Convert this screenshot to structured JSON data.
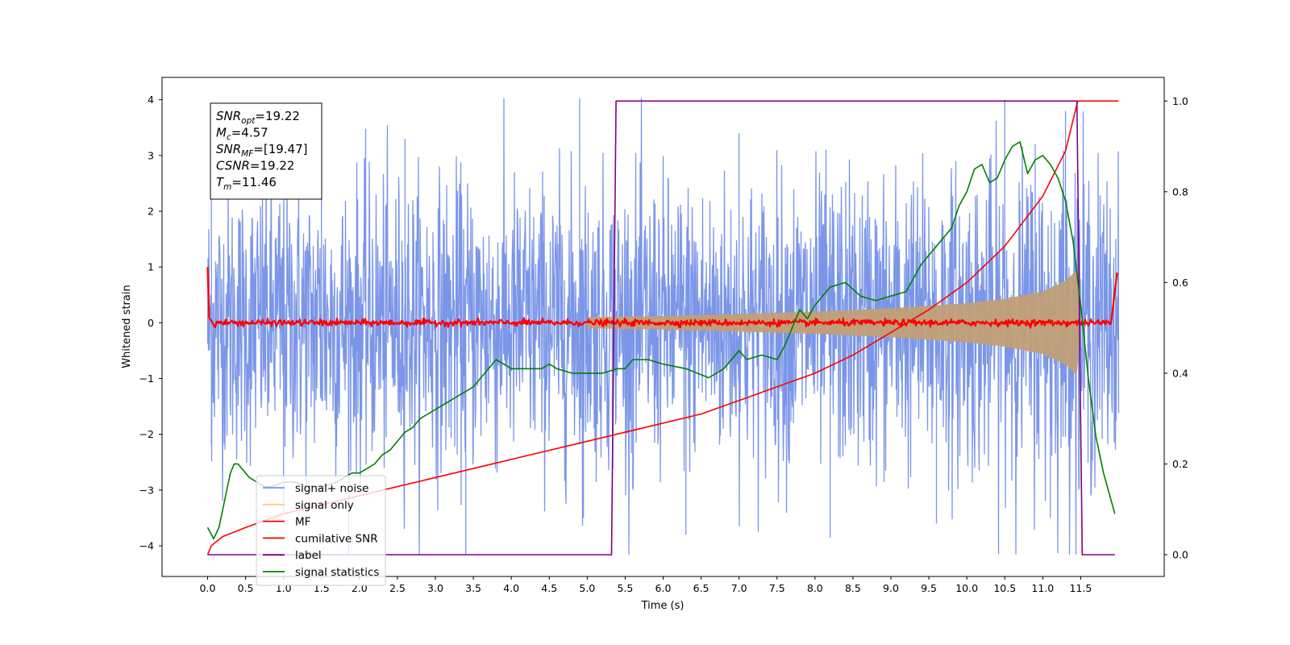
{
  "chart_data": {
    "type": "line",
    "xlabel": "Time (s)",
    "ylabel": "Whitened strain",
    "xlim": [
      -0.6,
      12.6
    ],
    "ylim": [
      -4.55,
      4.4
    ],
    "y2lim": [
      -0.048,
      1.052
    ],
    "x_ticks": [
      "0.0",
      "0.5",
      "1.0",
      "1.5",
      "2.0",
      "2.5",
      "3.0",
      "3.5",
      "4.0",
      "4.5",
      "5.0",
      "5.5",
      "6.0",
      "6.5",
      "7.0",
      "7.5",
      "8.0",
      "8.5",
      "9.0",
      "9.5",
      "10.0",
      "10.5",
      "11.0",
      "11.5"
    ],
    "y_ticks": [
      "4",
      "3",
      "2",
      "1",
      "0",
      "−1",
      "−2",
      "−3",
      "−4"
    ],
    "y2_ticks": [
      "1.0",
      "0.8",
      "0.6",
      "0.4",
      "0.2",
      "0.0"
    ],
    "info_box": [
      {
        "base": "SNR",
        "sub": "opt",
        "value": "=19.22"
      },
      {
        "base": "M",
        "sub": "c",
        "value": "=4.57"
      },
      {
        "base": "SNR",
        "sub": "MF",
        "value": "=[19.47]"
      },
      {
        "base": "CSNR",
        "sub": "",
        "value": "=19.22"
      },
      {
        "base": "T",
        "sub": "m",
        "value": "=11.46"
      }
    ],
    "legend": {
      "placement": "lower-left",
      "entries": [
        {
          "label": "signal+ noise",
          "color": "#7b96e8"
        },
        {
          "label": "signal only",
          "color": "#ffcc80"
        },
        {
          "label": "MF",
          "color": "#ff0000"
        },
        {
          "label": "cumilative SNR",
          "color": "#ff0000"
        },
        {
          "label": "label",
          "color": "#800080"
        },
        {
          "label": "signal statistics",
          "color": "#008000"
        }
      ]
    },
    "series": [
      {
        "name": "signal+ noise",
        "axis": "left",
        "color": "#7b96e8",
        "x_range": [
          0.0,
          12.0
        ],
        "upper_envelope": [
          [
            0.0,
            1.6
          ],
          [
            1.0,
            1.7
          ],
          [
            2.0,
            1.7
          ],
          [
            3.0,
            1.7
          ],
          [
            4.0,
            1.7
          ],
          [
            5.0,
            1.7
          ],
          [
            6.0,
            1.7
          ],
          [
            7.0,
            1.7
          ],
          [
            8.0,
            1.75
          ],
          [
            9.0,
            1.75
          ],
          [
            10.0,
            1.8
          ],
          [
            11.0,
            1.9
          ],
          [
            11.4,
            2.0
          ],
          [
            12.0,
            1.7
          ]
        ],
        "lower_envelope": [
          [
            0.0,
            -1.6
          ],
          [
            1.0,
            -1.7
          ],
          [
            2.0,
            -1.7
          ],
          [
            3.0,
            -1.7
          ],
          [
            4.0,
            -1.7
          ],
          [
            5.0,
            -1.7
          ],
          [
            6.0,
            -1.7
          ],
          [
            7.0,
            -1.7
          ],
          [
            8.0,
            -1.75
          ],
          [
            9.0,
            -1.75
          ],
          [
            10.0,
            -1.8
          ],
          [
            11.0,
            -1.9
          ],
          [
            11.4,
            -2.0
          ],
          [
            12.0,
            -1.7
          ]
        ],
        "peak_max": 4.02,
        "peak_min": -4.15
      },
      {
        "name": "signal only",
        "axis": "left",
        "color": "#c19f77",
        "envelope": [
          [
            5.0,
            0.1
          ],
          [
            6.0,
            0.12
          ],
          [
            7.0,
            0.16
          ],
          [
            8.0,
            0.2
          ],
          [
            9.0,
            0.26
          ],
          [
            10.0,
            0.35
          ],
          [
            10.5,
            0.43
          ],
          [
            11.0,
            0.56
          ],
          [
            11.3,
            0.75
          ],
          [
            11.45,
            0.95
          ],
          [
            11.5,
            0.0
          ]
        ]
      },
      {
        "name": "MF",
        "axis": "left",
        "color": "#ff0000",
        "points": [
          [
            0.0,
            1.0
          ],
          [
            0.02,
            0.1
          ],
          [
            0.1,
            0.0
          ],
          [
            11.9,
            0.0
          ],
          [
            11.98,
            0.9
          ]
        ]
      },
      {
        "name": "cumilative SNR",
        "axis": "right",
        "color": "#ff0000",
        "points": [
          [
            0.0,
            0.0
          ],
          [
            0.05,
            0.02
          ],
          [
            0.2,
            0.04
          ],
          [
            0.5,
            0.06
          ],
          [
            1.0,
            0.09
          ],
          [
            2.0,
            0.13
          ],
          [
            3.0,
            0.17
          ],
          [
            4.0,
            0.21
          ],
          [
            5.0,
            0.25
          ],
          [
            6.0,
            0.29
          ],
          [
            6.5,
            0.31
          ],
          [
            7.0,
            0.34
          ],
          [
            7.5,
            0.37
          ],
          [
            8.0,
            0.4
          ],
          [
            8.5,
            0.44
          ],
          [
            9.0,
            0.49
          ],
          [
            9.5,
            0.54
          ],
          [
            10.0,
            0.6
          ],
          [
            10.5,
            0.68
          ],
          [
            11.0,
            0.79
          ],
          [
            11.3,
            0.89
          ],
          [
            11.46,
            1.0
          ],
          [
            12.0,
            1.0
          ]
        ]
      },
      {
        "name": "label",
        "axis": "right",
        "color": "#800080",
        "points": [
          [
            0.0,
            0.0
          ],
          [
            5.32,
            0.0
          ],
          [
            5.38,
            1.0
          ],
          [
            11.45,
            1.0
          ],
          [
            11.52,
            0.0
          ],
          [
            11.95,
            0.0
          ]
        ]
      },
      {
        "name": "signal statistics",
        "axis": "right",
        "color": "#008000",
        "points": [
          [
            0.0,
            0.06
          ],
          [
            0.08,
            0.035
          ],
          [
            0.15,
            0.06
          ],
          [
            0.25,
            0.14
          ],
          [
            0.3,
            0.18
          ],
          [
            0.35,
            0.2
          ],
          [
            0.4,
            0.2
          ],
          [
            0.45,
            0.19
          ],
          [
            0.55,
            0.17
          ],
          [
            0.65,
            0.16
          ],
          [
            0.75,
            0.15
          ],
          [
            0.85,
            0.15
          ],
          [
            1.0,
            0.16
          ],
          [
            1.15,
            0.16
          ],
          [
            1.3,
            0.15
          ],
          [
            1.5,
            0.15
          ],
          [
            1.7,
            0.16
          ],
          [
            1.8,
            0.17
          ],
          [
            1.9,
            0.18
          ],
          [
            2.0,
            0.18
          ],
          [
            2.1,
            0.19
          ],
          [
            2.2,
            0.2
          ],
          [
            2.3,
            0.22
          ],
          [
            2.4,
            0.23
          ],
          [
            2.5,
            0.25
          ],
          [
            2.6,
            0.27
          ],
          [
            2.7,
            0.28
          ],
          [
            2.8,
            0.3
          ],
          [
            2.9,
            0.31
          ],
          [
            3.0,
            0.32
          ],
          [
            3.1,
            0.33
          ],
          [
            3.2,
            0.34
          ],
          [
            3.3,
            0.35
          ],
          [
            3.4,
            0.36
          ],
          [
            3.5,
            0.37
          ],
          [
            3.6,
            0.39
          ],
          [
            3.7,
            0.41
          ],
          [
            3.8,
            0.43
          ],
          [
            3.9,
            0.42
          ],
          [
            4.0,
            0.41
          ],
          [
            4.2,
            0.41
          ],
          [
            4.4,
            0.41
          ],
          [
            4.5,
            0.42
          ],
          [
            4.6,
            0.41
          ],
          [
            4.8,
            0.4
          ],
          [
            5.0,
            0.4
          ],
          [
            5.2,
            0.4
          ],
          [
            5.4,
            0.41
          ],
          [
            5.5,
            0.41
          ],
          [
            5.6,
            0.43
          ],
          [
            5.8,
            0.43
          ],
          [
            6.0,
            0.42
          ],
          [
            6.3,
            0.41
          ],
          [
            6.6,
            0.39
          ],
          [
            6.8,
            0.41
          ],
          [
            7.0,
            0.45
          ],
          [
            7.1,
            0.43
          ],
          [
            7.3,
            0.44
          ],
          [
            7.5,
            0.43
          ],
          [
            7.6,
            0.46
          ],
          [
            7.8,
            0.54
          ],
          [
            7.9,
            0.52
          ],
          [
            8.0,
            0.55
          ],
          [
            8.2,
            0.59
          ],
          [
            8.4,
            0.6
          ],
          [
            8.6,
            0.57
          ],
          [
            8.8,
            0.56
          ],
          [
            9.0,
            0.57
          ],
          [
            9.2,
            0.58
          ],
          [
            9.3,
            0.61
          ],
          [
            9.4,
            0.64
          ],
          [
            9.6,
            0.68
          ],
          [
            9.8,
            0.72
          ],
          [
            9.9,
            0.77
          ],
          [
            10.0,
            0.8
          ],
          [
            10.1,
            0.85
          ],
          [
            10.2,
            0.86
          ],
          [
            10.3,
            0.82
          ],
          [
            10.4,
            0.83
          ],
          [
            10.5,
            0.87
          ],
          [
            10.6,
            0.9
          ],
          [
            10.7,
            0.91
          ],
          [
            10.8,
            0.84
          ],
          [
            10.9,
            0.87
          ],
          [
            11.0,
            0.88
          ],
          [
            11.1,
            0.86
          ],
          [
            11.2,
            0.83
          ],
          [
            11.3,
            0.78
          ],
          [
            11.4,
            0.69
          ],
          [
            11.5,
            0.55
          ],
          [
            11.6,
            0.39
          ],
          [
            11.7,
            0.26
          ],
          [
            11.8,
            0.18
          ],
          [
            11.9,
            0.12
          ],
          [
            11.95,
            0.09
          ]
        ]
      }
    ]
  }
}
